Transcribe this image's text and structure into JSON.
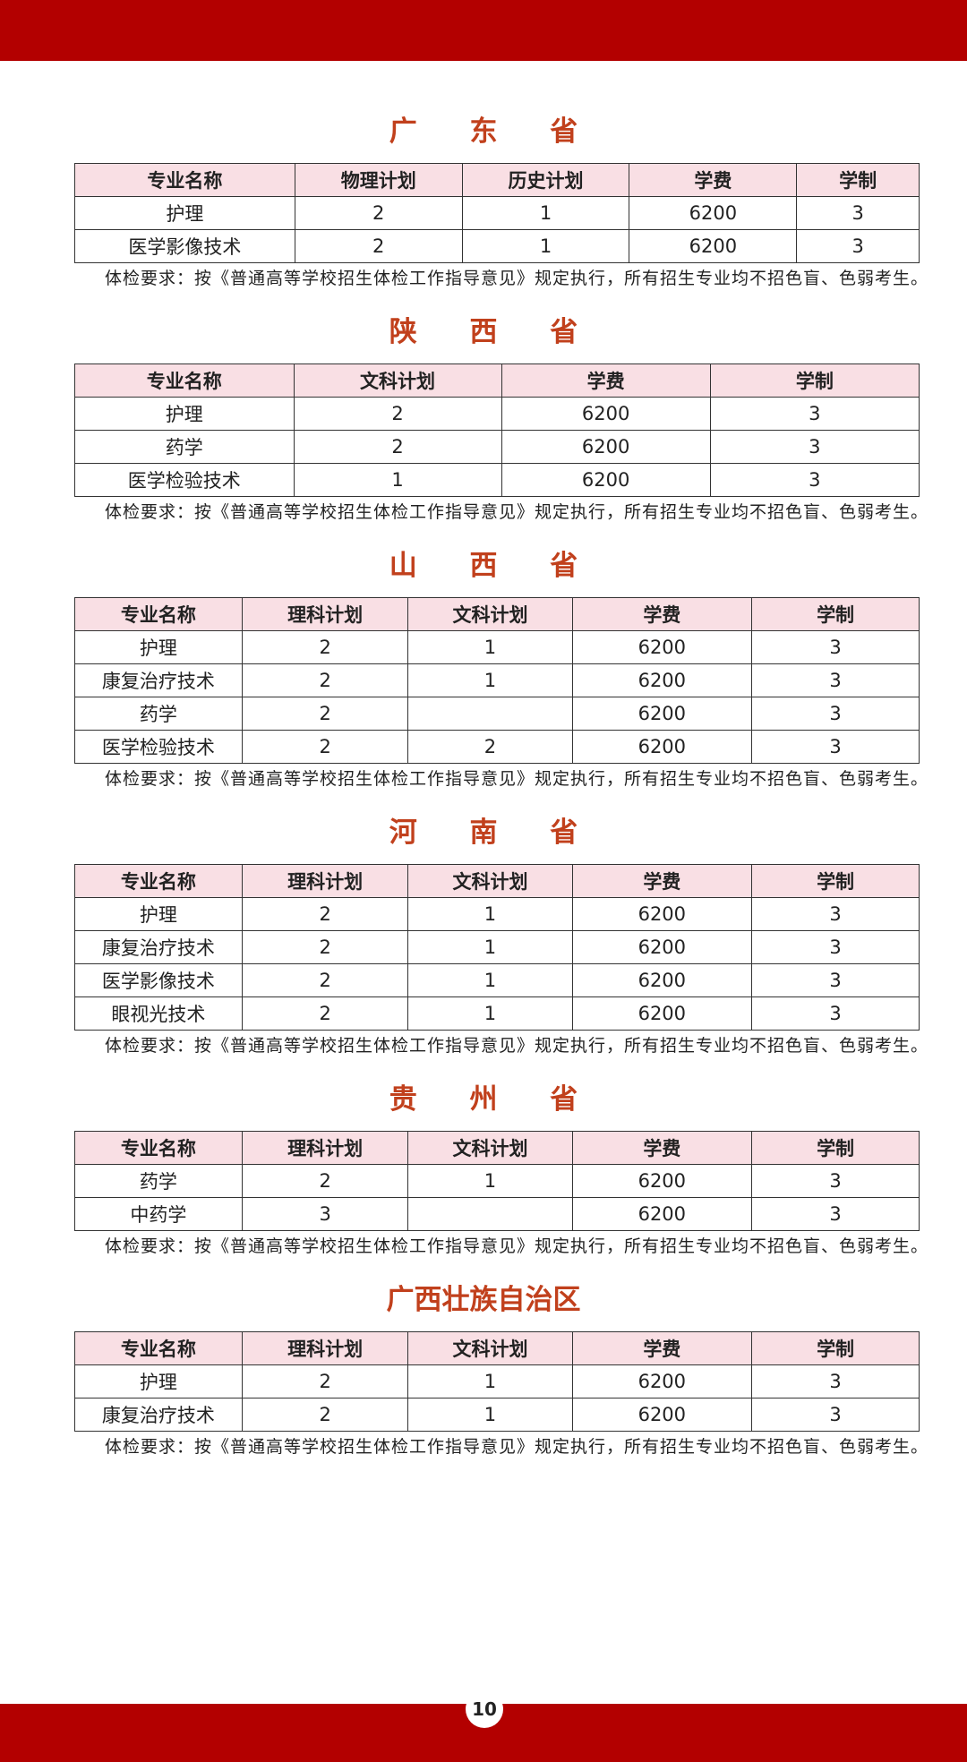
{
  "page_number": "10",
  "sections": [
    {
      "title": "广 东 省",
      "headers": [
        "专业名称",
        "物理计划",
        "历史计划",
        "学费",
        "学制"
      ],
      "rows": [
        [
          "护理",
          2,
          1,
          6200,
          3
        ],
        [
          "医学影像技术",
          2,
          1,
          6200,
          3
        ]
      ],
      "note": "体检要求：按《普通高等学校招生体检工作指导意见》规定执行，所有招生专业均不招色盲、色弱考生。"
    },
    {
      "title": "陕 西 省",
      "headers": [
        "专业名称",
        "文科计划",
        "学费",
        "学制"
      ],
      "rows": [
        [
          "护理",
          2,
          6200,
          3
        ],
        [
          "药学",
          2,
          6200,
          3
        ],
        [
          "医学检验技术",
          1,
          6200,
          3
        ]
      ],
      "note": "体检要求：按《普通高等学校招生体检工作指导意见》规定执行，所有招生专业均不招色盲、色弱考生。"
    },
    {
      "title": "山 西 省",
      "headers": [
        "专业名称",
        "理科计划",
        "文科计划",
        "学费",
        "学制"
      ],
      "rows": [
        [
          "护理",
          2,
          1,
          6200,
          3
        ],
        [
          "康复治疗技术",
          2,
          1,
          6200,
          3
        ],
        [
          "药学",
          2,
          null,
          6200,
          3
        ],
        [
          "医学检验技术",
          2,
          2,
          6200,
          3
        ]
      ],
      "note": "体检要求：按《普通高等学校招生体检工作指导意见》规定执行，所有招生专业均不招色盲、色弱考生。"
    },
    {
      "title": "河 南 省",
      "headers": [
        "专业名称",
        "理科计划",
        "文科计划",
        "学费",
        "学制"
      ],
      "rows": [
        [
          "护理",
          2,
          1,
          6200,
          3
        ],
        [
          "康复治疗技术",
          2,
          1,
          6200,
          3
        ],
        [
          "医学影像技术",
          2,
          1,
          6200,
          3
        ],
        [
          "眼视光技术",
          2,
          1,
          6200,
          3
        ]
      ],
      "note": "体检要求：按《普通高等学校招生体检工作指导意见》规定执行，所有招生专业均不招色盲、色弱考生。"
    },
    {
      "title": "贵 州 省",
      "headers": [
        "专业名称",
        "理科计划",
        "文科计划",
        "学费",
        "学制"
      ],
      "rows": [
        [
          "药学",
          2,
          1,
          6200,
          3
        ],
        [
          "中药学",
          3,
          null,
          6200,
          3
        ]
      ],
      "note": "体检要求：按《普通高等学校招生体检工作指导意见》规定执行，所有招生专业均不招色盲、色弱考生。"
    },
    {
      "title": "广西壮族自治区",
      "headers": [
        "专业名称",
        "理科计划",
        "文科计划",
        "学费",
        "学制"
      ],
      "rows": [
        [
          "护理",
          2,
          1,
          6200,
          3
        ],
        [
          "康复治疗技术",
          2,
          1,
          6200,
          3
        ]
      ],
      "note": "体检要求：按《普通高等学校招生体检工作指导意见》规定执行，所有招生专业均不招色盲、色弱考生。"
    }
  ]
}
